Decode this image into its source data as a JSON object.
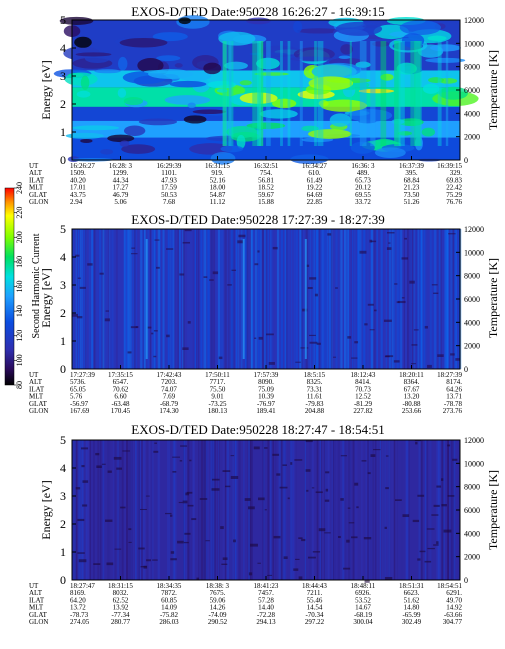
{
  "chart_data": [
    {
      "type": "heatmap",
      "title": "EXOS-D/TED   Date:950228   16:26:27 - 16:39:15",
      "ylabel": "Energy [eV]",
      "ylabel_right": "Temperature [K]",
      "ylim": [
        0,
        5
      ],
      "yticks": [
        "0",
        "1",
        "2",
        "3",
        "4",
        "5"
      ],
      "ylim_right": [
        0,
        12000
      ],
      "yticks_right": [
        "0",
        "2000",
        "4000",
        "6000",
        "8000",
        "10000",
        "12000"
      ],
      "bands": [
        {
          "from": 0.0,
          "to": 0.8,
          "value": 128
        },
        {
          "from": 0.8,
          "to": 1.4,
          "value": 150
        },
        {
          "from": 1.4,
          "to": 1.9,
          "value": 125
        },
        {
          "from": 1.9,
          "to": 2.6,
          "value": 175
        },
        {
          "from": 2.6,
          "to": 3.2,
          "value": 160
        },
        {
          "from": 3.2,
          "to": 5.0,
          "value": 118
        }
      ],
      "ephemeris": {
        "labels": [
          "UT",
          "ALT",
          "ILAT",
          "MLT",
          "GLAT",
          "GLON"
        ],
        "columns": [
          [
            "16:26:27",
            "1509.",
            "40.20",
            "17.01",
            "43.75",
            "2.94"
          ],
          [
            "16:28: 3",
            "1299.",
            "44.34",
            "17.27",
            "46.79",
            "5.06"
          ],
          [
            "16:29:39",
            "1101.",
            "47.93",
            "17.59",
            "50.53",
            "7.68"
          ],
          [
            "16:31:15",
            "919.",
            "52.16",
            "18.00",
            "54.87",
            "11.12"
          ],
          [
            "16:32:51",
            "754.",
            "56.81",
            "18.52",
            "59.67",
            "15.88"
          ],
          [
            "16:34:27",
            "610.",
            "61.49",
            "19.22",
            "64.69",
            "22.85"
          ],
          [
            "16:36: 3",
            "489.",
            "65.73",
            "20.12",
            "69.55",
            "33.72"
          ],
          [
            "16:37:39",
            "395.",
            "68.84",
            "21.23",
            "73.50",
            "51.26"
          ],
          [
            "16:39:15",
            "329.",
            "69.83",
            "22.42",
            "75.29",
            "76.76"
          ]
        ]
      }
    },
    {
      "type": "heatmap",
      "title": "EXOS-D/TED   Date:950228   17:27:39 - 18:27:39",
      "ylabel": "Energy [eV]",
      "ylabel_right": "Temperature [K]",
      "ylim": [
        0,
        5
      ],
      "yticks": [
        "0",
        "1",
        "2",
        "3",
        "4",
        "5"
      ],
      "ylim_right": [
        0,
        12000
      ],
      "yticks_right": [
        "0",
        "2000",
        "4000",
        "6000",
        "8000",
        "10000",
        "12000"
      ],
      "bands": [
        {
          "from": 0.0,
          "to": 5.0,
          "value": 112
        }
      ],
      "ephemeris": {
        "labels": [
          "UT",
          "ALT",
          "ILAT",
          "MLT",
          "GLAT",
          "GLON"
        ],
        "columns": [
          [
            "17:27:39",
            "5736.",
            "65.05",
            "5.76",
            "-56.97",
            "167.69"
          ],
          [
            "17:35:15",
            "6547.",
            "70.62",
            "6.60",
            "-63.48",
            "170.45"
          ],
          [
            "17:42:43",
            "7203.",
            "74.07",
            "7.69",
            "-68.79",
            "174.30"
          ],
          [
            "17:50:11",
            "7717.",
            "75.50",
            "9.01",
            "-73.25",
            "180.13"
          ],
          [
            "17:57:39",
            "8090.",
            "75.09",
            "10.39",
            "-76.97",
            "189.41"
          ],
          [
            "18:5:15",
            "8325.",
            "73.31",
            "11.61",
            "-79.83",
            "204.88"
          ],
          [
            "18:12:43",
            "8414.",
            "70.73",
            "12.52",
            "-81.29",
            "227.82"
          ],
          [
            "18:20:11",
            "8364.",
            "67.67",
            "13.20",
            "-80.88",
            "253.66"
          ],
          [
            "18:27:39",
            "8174.",
            "64.26",
            "13.71",
            "-78.78",
            "273.76"
          ]
        ]
      }
    },
    {
      "type": "heatmap",
      "title": "EXOS-D/TED   Date:950228   18:27:47 - 18:54:51",
      "ylabel": "Energy [eV]",
      "ylabel_right": "Temperature [K]",
      "ylim": [
        0,
        5
      ],
      "yticks": [
        "0",
        "1",
        "2",
        "3",
        "4",
        "5"
      ],
      "ylim_right": [
        0,
        12000
      ],
      "yticks_right": [
        "0",
        "2000",
        "4000",
        "6000",
        "8000",
        "10000",
        "12000"
      ],
      "bands": [
        {
          "from": 0.0,
          "to": 5.0,
          "value": 105
        }
      ],
      "ephemeris": {
        "labels": [
          "UT",
          "ALT",
          "ILAT",
          "MLT",
          "GLAT",
          "GLON"
        ],
        "columns": [
          [
            "18:27:47",
            "8169.",
            "64.20",
            "13.72",
            "-78.73",
            "274.05"
          ],
          [
            "18:31:15",
            "8032.",
            "62.52",
            "13.92",
            "-77.34",
            "280.77"
          ],
          [
            "18:34:35",
            "7872.",
            "60.85",
            "14.09",
            "-75.82",
            "286.03"
          ],
          [
            "18:38: 3",
            "7675.",
            "59.06",
            "14.26",
            "-74.09",
            "290.52"
          ],
          [
            "18:41:23",
            "7457.",
            "57.28",
            "14.40",
            "-72.28",
            "294.13"
          ],
          [
            "18:44:43",
            "7211.",
            "55.46",
            "14.54",
            "-70.34",
            "297.22"
          ],
          [
            "18:48:11",
            "6926.",
            "53.52",
            "14.67",
            "-68.19",
            "300.04"
          ],
          [
            "18:51:31",
            "6623.",
            "51.62",
            "14.80",
            "-65.99",
            "302.49"
          ],
          [
            "18:54:51",
            "6291.",
            "49.70",
            "14.92",
            "-63.66",
            "304.77"
          ]
        ]
      }
    }
  ],
  "colorbar": {
    "label": "Second Harmonic Current",
    "range": [
      80,
      240
    ],
    "ticks": [
      "80",
      "100",
      "120",
      "140",
      "160",
      "180",
      "200",
      "220",
      "240"
    ]
  }
}
